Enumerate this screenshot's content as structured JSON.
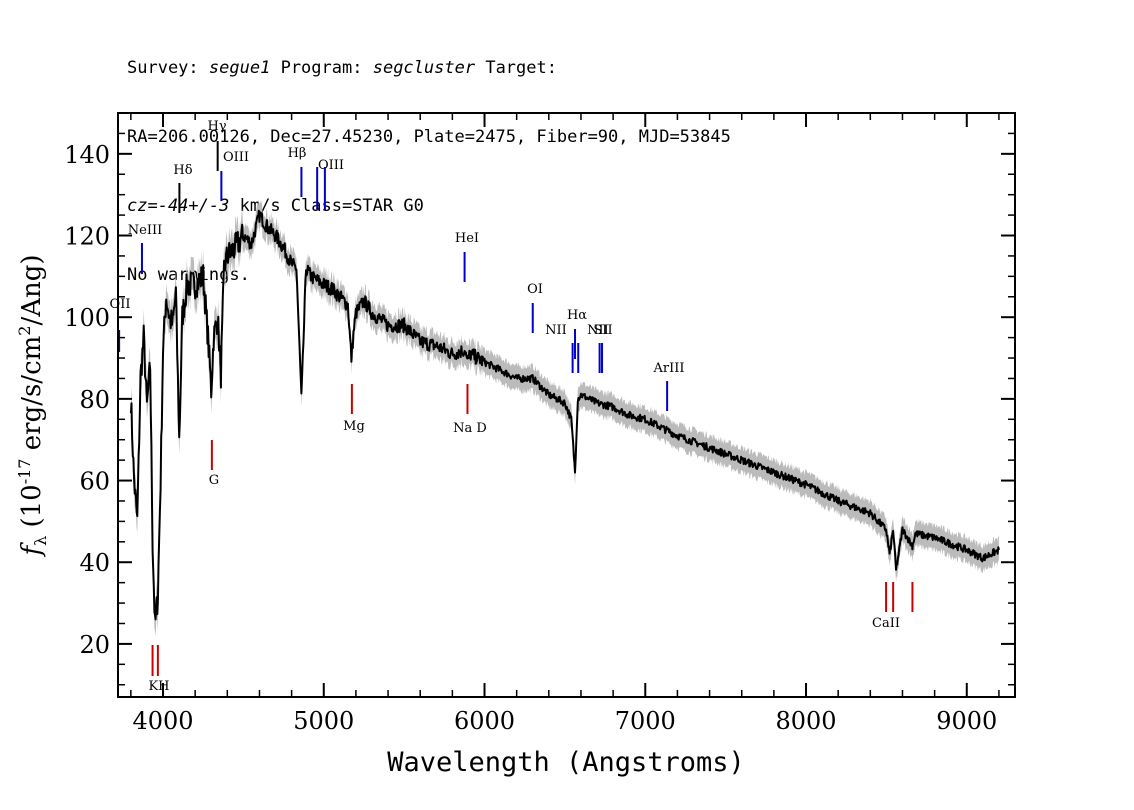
{
  "header": {
    "survey_label": "Survey:",
    "survey": "segue1",
    "program_label": "Program:",
    "program": "segcluster",
    "target_label": "Target:",
    "line2": "RA=206.00126, Dec=27.45230, Plate=2475, Fiber=90, MJD=53845",
    "cz_label": "cz=",
    "cz_value": "-44+/-3",
    "cz_rest": " km/s Class=STAR G0",
    "line4": "No warnings."
  },
  "chart_data": {
    "type": "line",
    "title": "",
    "xlabel": "Wavelength (Angstroms)",
    "ylabel": "f_λ (10^-17 erg/s/cm^2/Ang)",
    "xlim": [
      3720,
      9300
    ],
    "ylim": [
      7,
      150
    ],
    "xticks": [
      4000,
      5000,
      6000,
      7000,
      8000,
      9000
    ],
    "yticks": [
      20,
      40,
      60,
      80,
      100,
      120,
      140
    ],
    "grid": false,
    "series": [
      {
        "color": "#000000",
        "x": [
          3800,
          3820,
          3840,
          3860,
          3880,
          3900,
          3920,
          3935,
          3950,
          3968,
          3985,
          4000,
          4020,
          4040,
          4060,
          4080,
          4101,
          4120,
          4150,
          4200,
          4250,
          4280,
          4300,
          4315,
          4340,
          4360,
          4380,
          4400,
          4450,
          4500,
          4550,
          4600,
          4650,
          4700,
          4750,
          4800,
          4830,
          4861,
          4890,
          4920,
          5000,
          5050,
          5100,
          5150,
          5172,
          5185,
          5200,
          5250,
          5300,
          5400,
          5500,
          5600,
          5700,
          5800,
          5880,
          5893,
          5910,
          6000,
          6100,
          6200,
          6300,
          6400,
          6500,
          6540,
          6563,
          6580,
          6600,
          6700,
          6800,
          6900,
          7000,
          7200,
          7400,
          7600,
          7800,
          8000,
          8200,
          8400,
          8498,
          8520,
          8542,
          8560,
          8600,
          8662,
          8680,
          8800,
          9000,
          9100,
          9200
        ],
        "values": [
          80,
          60,
          50,
          85,
          95,
          78,
          88,
          45,
          24,
          32,
          60,
          92,
          105,
          100,
          98,
          106,
          70,
          100,
          108,
          108,
          110,
          95,
          82,
          95,
          100,
          86,
          112,
          115,
          117,
          120,
          118,
          125,
          122,
          120,
          117,
          113,
          112,
          80,
          112,
          110,
          108,
          107,
          105,
          103,
          90,
          96,
          101,
          104,
          101,
          98,
          98,
          94,
          93,
          91,
          92,
          89,
          91,
          89,
          87,
          85,
          85,
          81,
          79,
          75,
          62,
          80,
          81,
          79,
          78,
          76,
          75,
          71,
          68,
          65,
          62,
          59,
          55,
          52,
          48,
          42,
          48,
          38,
          48,
          44,
          47,
          46,
          43,
          41,
          43
        ]
      }
    ],
    "error_band_color": "#bbbbbb",
    "emission_lines": [
      {
        "label": "OII",
        "x": 3727,
        "color": "#0000cc"
      },
      {
        "label": "NeIII",
        "x": 3869,
        "color": "#0000cc"
      },
      {
        "label": "Hδ",
        "x": 4102,
        "color": "#000000"
      },
      {
        "label": "Hγ",
        "x": 4340,
        "color": "#000000"
      },
      {
        "label": "OIII",
        "x": 4363,
        "color": "#0000cc"
      },
      {
        "label": "Hβ",
        "x": 4861,
        "color": "#0000cc"
      },
      {
        "label": "OIII",
        "x": 4959,
        "color": "#0000cc"
      },
      {
        "label": "OIII",
        "x": 5007,
        "color": "#0000cc"
      },
      {
        "label": "HeI",
        "x": 5876,
        "color": "#0000cc"
      },
      {
        "label": "OI",
        "x": 6300,
        "color": "#0000cc"
      },
      {
        "label": "NII",
        "x": 6548,
        "color": "#0000cc"
      },
      {
        "label": "Hα",
        "x": 6563,
        "color": "#0000cc"
      },
      {
        "label": "NII",
        "x": 6583,
        "color": "#0000cc"
      },
      {
        "label": "SII",
        "x": 6716,
        "color": "#0000cc"
      },
      {
        "label": "SII",
        "x": 6731,
        "color": "#0000cc"
      },
      {
        "label": "ArIII",
        "x": 7136,
        "color": "#0000cc"
      }
    ],
    "absorption_lines": [
      {
        "label": "KH",
        "x": 3950,
        "color": "#cc0000"
      },
      {
        "label": "G",
        "x": 4304,
        "color": "#cc0000"
      },
      {
        "label": "Mg",
        "x": 5175,
        "color": "#cc0000"
      },
      {
        "label": "Na D",
        "x": 5894,
        "color": "#cc0000"
      },
      {
        "label": "CaII",
        "x": 8542,
        "color": "#cc0000"
      }
    ]
  }
}
